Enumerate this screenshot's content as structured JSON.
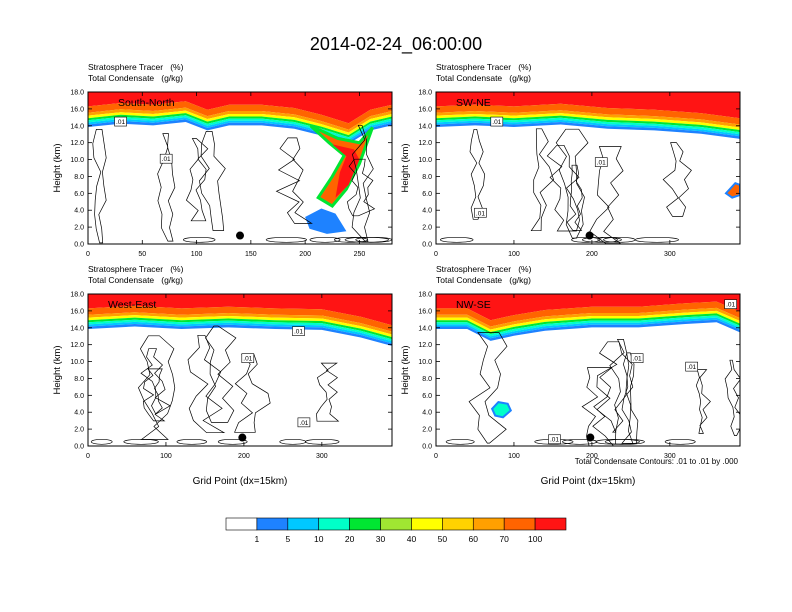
{
  "title": "2014-02-24_06:00:00",
  "footnote": "Total Condensate Contours: .01 to .01 by .000",
  "colors": {
    "levels": [
      "#ffffff",
      "#1e82ff",
      "#00c8ff",
      "#00ffc8",
      "#00e632",
      "#a0e632",
      "#ffff00",
      "#ffd200",
      "#ffa000",
      "#ff6400",
      "#ff1414"
    ],
    "contour": "#000000"
  },
  "colorbar": {
    "labels": [
      "1",
      "5",
      "10",
      "20",
      "30",
      "40",
      "50",
      "60",
      "70",
      "100"
    ]
  },
  "chart_data": [
    {
      "type": "heatmap",
      "name": "South-North",
      "header_line1": "Stratosphere Tracer   (%)",
      "header_line2": "Total Condensate   (g/kg)",
      "ylabel": "Height (km)",
      "xlabel": "",
      "xlim": [
        0,
        280
      ],
      "ylim": [
        0,
        18
      ],
      "xticks": [
        "0",
        "50",
        "100",
        "150",
        "200",
        "250"
      ],
      "xtick_values": [
        0,
        50,
        100,
        150,
        200,
        250
      ],
      "yticks": [
        "0.0",
        "2.0",
        "4.0",
        "6.0",
        "8.0",
        "10.0",
        "12.0",
        "14.0",
        "16.0",
        "18.0"
      ],
      "contour_labels": [
        {
          "text": ".01",
          "x": 30,
          "y": 14.5
        },
        {
          "text": ".01",
          "x": 72,
          "y": 10.1
        }
      ],
      "marker": {
        "x": 140,
        "y": 1.0
      },
      "tropopause": [
        [
          0,
          15.0
        ],
        [
          30,
          15.4
        ],
        [
          60,
          15.2
        ],
        [
          90,
          15.6
        ],
        [
          110,
          14.6
        ],
        [
          130,
          15.2
        ],
        [
          160,
          15.2
        ],
        [
          190,
          14.8
        ],
        [
          215,
          14.0
        ],
        [
          240,
          13.0
        ],
        [
          260,
          14.6
        ],
        [
          280,
          15.2
        ]
      ]
    },
    {
      "type": "heatmap",
      "name": "SW-NE",
      "header_line1": "Stratosphere Tracer   (%)",
      "header_line2": "Total Condensate   (g/kg)",
      "ylabel": "Height (km)",
      "xlabel": "",
      "xlim": [
        0,
        390
      ],
      "ylim": [
        0,
        18
      ],
      "xticks": [
        "0",
        "100",
        "200",
        "300"
      ],
      "xtick_values": [
        0,
        100,
        200,
        300
      ],
      "yticks": [
        "0.0",
        "2.0",
        "4.0",
        "6.0",
        "8.0",
        "10.0",
        "12.0",
        "14.0",
        "16.0",
        "18.0"
      ],
      "contour_labels": [
        {
          "text": ".01",
          "x": 78,
          "y": 14.5
        },
        {
          "text": ".01",
          "x": 212,
          "y": 9.7
        },
        {
          "text": ".01",
          "x": 57,
          "y": 3.7
        }
      ],
      "marker": {
        "x": 197,
        "y": 1.0
      },
      "tropopause": [
        [
          0,
          15.0
        ],
        [
          50,
          15.2
        ],
        [
          100,
          15.0
        ],
        [
          160,
          15.3
        ],
        [
          220,
          14.8
        ],
        [
          280,
          14.6
        ],
        [
          340,
          14.2
        ],
        [
          390,
          13.6
        ]
      ]
    },
    {
      "type": "heatmap",
      "name": "West-East",
      "header_line1": "Stratosphere Tracer   (%)",
      "header_line2": "Total Condensate   (g/kg)",
      "ylabel": "Height (km)",
      "xlabel": "Grid Point (dx=15km)",
      "xlim": [
        0,
        390
      ],
      "ylim": [
        0,
        18
      ],
      "xticks": [
        "0",
        "100",
        "200",
        "300"
      ],
      "xtick_values": [
        0,
        100,
        200,
        300
      ],
      "yticks": [
        "0.0",
        "2.0",
        "4.0",
        "6.0",
        "8.0",
        "10.0",
        "12.0",
        "14.0",
        "16.0",
        "18.0"
      ],
      "contour_labels": [
        {
          "text": ".01",
          "x": 270,
          "y": 13.6
        },
        {
          "text": ".01",
          "x": 205,
          "y": 10.4
        },
        {
          "text": ".01",
          "x": 277,
          "y": 2.8
        }
      ],
      "marker": {
        "x": 198,
        "y": 1.0
      },
      "tropopause": [
        [
          0,
          15.0
        ],
        [
          60,
          15.3
        ],
        [
          120,
          15.0
        ],
        [
          180,
          15.2
        ],
        [
          240,
          15.0
        ],
        [
          300,
          14.9
        ],
        [
          350,
          14.0
        ],
        [
          390,
          13.0
        ]
      ]
    },
    {
      "type": "heatmap",
      "name": "NW-SE",
      "header_line1": "Stratosphere Tracer   (%)",
      "header_line2": "Total Condensate   (g/kg)",
      "ylabel": "Height (km)",
      "xlabel": "Grid Point (dx=15km)",
      "xlim": [
        0,
        390
      ],
      "ylim": [
        0,
        18
      ],
      "xticks": [
        "0",
        "100",
        "200",
        "300"
      ],
      "xtick_values": [
        0,
        100,
        200,
        300
      ],
      "yticks": [
        "0.0",
        "2.0",
        "4.0",
        "6.0",
        "8.0",
        "10.0",
        "12.0",
        "14.0",
        "16.0",
        "18.0"
      ],
      "contour_labels": [
        {
          "text": ".01",
          "x": 378,
          "y": 16.8
        },
        {
          "text": ".01",
          "x": 258,
          "y": 10.4
        },
        {
          "text": ".01",
          "x": 328,
          "y": 9.4
        },
        {
          "text": ".01",
          "x": 152,
          "y": 0.8
        }
      ],
      "marker": {
        "x": 198,
        "y": 1.0
      },
      "tropopause": [
        [
          0,
          15.0
        ],
        [
          40,
          15.0
        ],
        [
          70,
          13.6
        ],
        [
          100,
          14.2
        ],
        [
          140,
          14.8
        ],
        [
          200,
          15.2
        ],
        [
          260,
          15.2
        ],
        [
          320,
          15.6
        ],
        [
          360,
          15.8
        ],
        [
          390,
          14.6
        ]
      ]
    }
  ]
}
